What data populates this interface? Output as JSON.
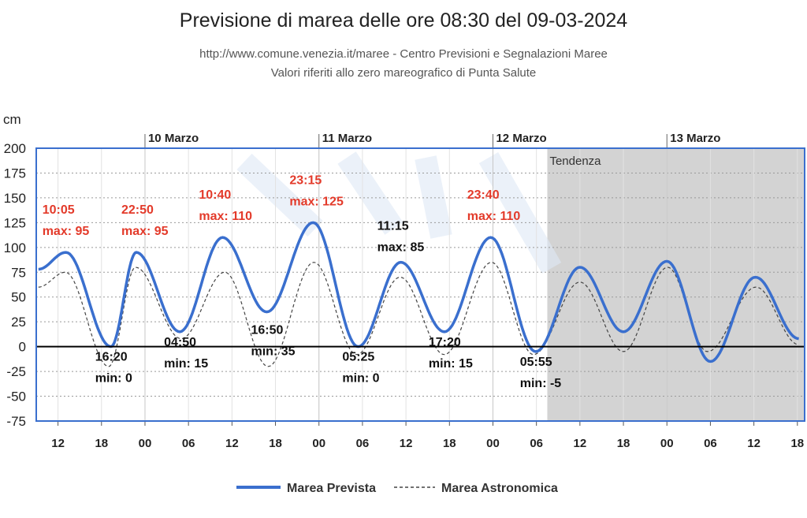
{
  "header": {
    "title": "Previsione di marea delle ore 08:30 del 09-03-2024",
    "subtitle1": "http://www.comune.venezia.it/maree - Centro Previsioni e Segnalazioni Maree",
    "subtitle2": "Valori riferiti allo zero mareografico di Punta Salute"
  },
  "colors": {
    "forecast": "#3a6fce",
    "astronomic": "#444444",
    "max_label": "#e33a2a",
    "min_label": "#111111",
    "frame": "#3a6fce",
    "tendency_bg": "#d3d3d3"
  },
  "chart_data": {
    "type": "line",
    "ylabel": "cm",
    "ylim": [
      -75,
      200
    ],
    "yticks": [
      200,
      175,
      150,
      125,
      100,
      75,
      50,
      25,
      0,
      -25,
      -50,
      -75
    ],
    "xlim_hours": [
      -15,
      69
    ],
    "xticks": [
      {
        "hour": -12,
        "label": "12"
      },
      {
        "hour": -6,
        "label": "18"
      },
      {
        "hour": 0,
        "label": "00"
      },
      {
        "hour": 6,
        "label": "06"
      },
      {
        "hour": 12,
        "label": "12"
      },
      {
        "hour": 18,
        "label": "18"
      },
      {
        "hour": 24,
        "label": "00"
      },
      {
        "hour": 30,
        "label": "06"
      },
      {
        "hour": 36,
        "label": "12"
      },
      {
        "hour": 42,
        "label": "18"
      },
      {
        "hour": 48,
        "label": "00"
      },
      {
        "hour": 54,
        "label": "06"
      },
      {
        "hour": 60,
        "label": "12"
      },
      {
        "hour": 66,
        "label": "18"
      },
      {
        "hour": 72,
        "label": "00"
      },
      {
        "hour": 78,
        "label": "06"
      },
      {
        "hour": 84,
        "label": "12"
      },
      {
        "hour": 90,
        "label": "18"
      }
    ],
    "days": [
      {
        "hour": 0,
        "label": "10 Marzo"
      },
      {
        "hour": 24,
        "label": "11 Marzo"
      },
      {
        "hour": 48,
        "label": "12 Marzo"
      },
      {
        "hour": 72,
        "label": "13 Marzo"
      }
    ],
    "tendency": {
      "from_hour": 55.5,
      "label": "Tendenza"
    },
    "series": [
      {
        "name": "Marea Prevista",
        "points": [
          [
            -14.7,
            78
          ],
          [
            -10.9,
            95
          ],
          [
            -4.7,
            0
          ],
          [
            -1.2,
            95
          ],
          [
            4.8,
            15
          ],
          [
            10.7,
            110
          ],
          [
            16.8,
            35
          ],
          [
            23.2,
            125
          ],
          [
            29.4,
            0
          ],
          [
            35.3,
            85
          ],
          [
            41.3,
            15
          ],
          [
            47.7,
            110
          ],
          [
            53.9,
            -5
          ],
          [
            60,
            80
          ],
          [
            66,
            15
          ],
          [
            72,
            86
          ],
          [
            78,
            -15
          ],
          [
            84.2,
            70
          ],
          [
            90.2,
            8
          ]
        ]
      },
      {
        "name": "Marea Astronomica",
        "points": [
          [
            -14.7,
            60
          ],
          [
            -11,
            75
          ],
          [
            -5,
            -20
          ],
          [
            -1.3,
            80
          ],
          [
            5,
            8
          ],
          [
            11,
            75
          ],
          [
            17,
            -20
          ],
          [
            23.3,
            85
          ],
          [
            29.2,
            -8
          ],
          [
            35.2,
            70
          ],
          [
            41.3,
            -8
          ],
          [
            47.8,
            85
          ],
          [
            53.6,
            -8
          ],
          [
            60,
            65
          ],
          [
            66,
            -5
          ],
          [
            72.1,
            80
          ],
          [
            77.6,
            -5
          ],
          [
            84.3,
            60
          ],
          [
            90.2,
            2
          ]
        ]
      }
    ],
    "annotations": [
      {
        "hour": -10.9,
        "value": 95,
        "kind": "max",
        "time": "10:05",
        "text": "max: 95"
      },
      {
        "hour": 0,
        "value": 95,
        "kind": "max",
        "time": "22:50",
        "text": "max: 95"
      },
      {
        "hour": 10.7,
        "value": 110,
        "kind": "max",
        "time": "10:40",
        "text": "max: 110"
      },
      {
        "hour": 23.2,
        "value": 125,
        "kind": "max",
        "time": "23:15",
        "text": "max: 125"
      },
      {
        "hour": 47.7,
        "value": 110,
        "kind": "max",
        "time": "23:40",
        "text": "max: 110"
      },
      {
        "hour": 35.3,
        "value": 85,
        "kind": "max-black",
        "time": "11:15",
        "text": "max: 85"
      },
      {
        "hour": -4.7,
        "value": 0,
        "kind": "min",
        "time": "16:20",
        "text": "min: 0"
      },
      {
        "hour": 4.8,
        "value": 15,
        "kind": "min",
        "time": "04:50",
        "text": "min: 15"
      },
      {
        "hour": 16.8,
        "value": 35,
        "kind": "min",
        "time": "16:50",
        "text": "min: 35"
      },
      {
        "hour": 29.4,
        "value": 0,
        "kind": "min",
        "time": "05:25",
        "text": "min: 0"
      },
      {
        "hour": 41.3,
        "value": 15,
        "kind": "min",
        "time": "17:20",
        "text": "min: 15"
      },
      {
        "hour": 53.9,
        "value": -5,
        "kind": "min",
        "time": "05:55",
        "text": "min: -5"
      }
    ],
    "legend": {
      "placement": "bottom-center",
      "labels": [
        "Marea Prevista",
        "Marea Astronomica"
      ]
    },
    "grid": true
  }
}
